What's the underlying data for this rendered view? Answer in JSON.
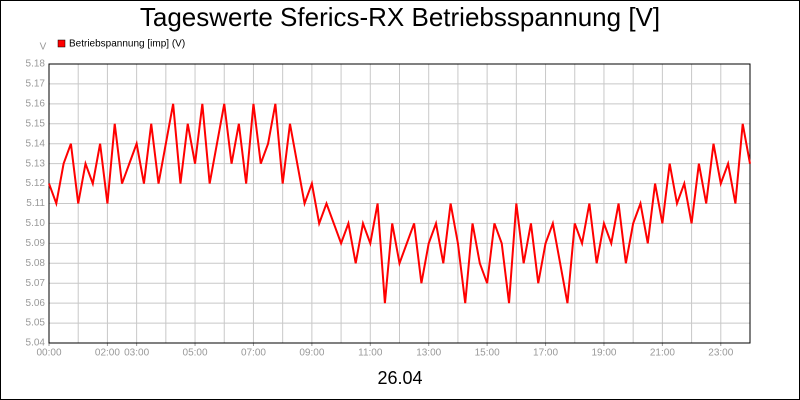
{
  "chart_data": {
    "type": "line",
    "title": "Tageswerte Sferics-RX Betriebsspannung [V]",
    "y_unit": "V",
    "x_label": "26.04",
    "x": [
      0,
      0.25,
      0.5,
      0.75,
      1,
      1.25,
      1.5,
      1.75,
      2,
      2.25,
      2.5,
      2.75,
      3,
      3.25,
      3.5,
      3.75,
      4,
      4.25,
      4.5,
      4.75,
      5,
      5.25,
      5.5,
      5.75,
      6,
      6.25,
      6.5,
      6.75,
      7,
      7.25,
      7.5,
      7.75,
      8,
      8.25,
      8.5,
      8.75,
      9,
      9.25,
      9.5,
      9.75,
      10,
      10.25,
      10.5,
      10.75,
      11,
      11.25,
      11.5,
      11.75,
      12,
      12.25,
      12.5,
      12.75,
      13,
      13.25,
      13.5,
      13.75,
      14,
      14.25,
      14.5,
      14.75,
      15,
      15.25,
      15.5,
      15.75,
      16,
      16.25,
      16.5,
      16.75,
      17,
      17.25,
      17.5,
      17.75,
      18,
      18.25,
      18.5,
      18.75,
      19,
      19.25,
      19.5,
      19.75,
      20,
      20.25,
      20.5,
      20.75,
      21,
      21.25,
      21.5,
      21.75,
      22,
      22.25,
      22.5,
      22.75,
      23,
      23.25,
      23.5,
      23.75,
      24
    ],
    "series": [
      {
        "name": "Betriebspannung [imp] (V)",
        "color": "#ff0000",
        "values": [
          5.12,
          5.11,
          5.13,
          5.14,
          5.11,
          5.13,
          5.12,
          5.14,
          5.11,
          5.15,
          5.12,
          5.13,
          5.14,
          5.12,
          5.15,
          5.12,
          5.14,
          5.16,
          5.12,
          5.15,
          5.13,
          5.16,
          5.12,
          5.14,
          5.16,
          5.13,
          5.15,
          5.12,
          5.16,
          5.13,
          5.14,
          5.16,
          5.12,
          5.15,
          5.13,
          5.11,
          5.12,
          5.1,
          5.11,
          5.1,
          5.09,
          5.1,
          5.08,
          5.1,
          5.09,
          5.11,
          5.06,
          5.1,
          5.08,
          5.09,
          5.1,
          5.07,
          5.09,
          5.1,
          5.08,
          5.11,
          5.09,
          5.06,
          5.1,
          5.08,
          5.07,
          5.1,
          5.09,
          5.06,
          5.11,
          5.08,
          5.1,
          5.07,
          5.09,
          5.1,
          5.08,
          5.06,
          5.1,
          5.09,
          5.11,
          5.08,
          5.1,
          5.09,
          5.11,
          5.08,
          5.1,
          5.11,
          5.09,
          5.12,
          5.1,
          5.13,
          5.11,
          5.12,
          5.1,
          5.13,
          5.11,
          5.14,
          5.12,
          5.13,
          5.11,
          5.15,
          5.13
        ]
      }
    ],
    "xlim": [
      0,
      24
    ],
    "xticks": [
      {
        "value": 0,
        "label": "00:00"
      },
      {
        "value": 2,
        "label": "02:00"
      },
      {
        "value": 3,
        "label": "03:00"
      },
      {
        "value": 5,
        "label": "05:00"
      },
      {
        "value": 7,
        "label": "07:00"
      },
      {
        "value": 9,
        "label": "09:00"
      },
      {
        "value": 11,
        "label": "11:00"
      },
      {
        "value": 13,
        "label": "13:00"
      },
      {
        "value": 15,
        "label": "15:00"
      },
      {
        "value": 17,
        "label": "17:00"
      },
      {
        "value": 19,
        "label": "19:00"
      },
      {
        "value": 21,
        "label": "21:00"
      },
      {
        "value": 23,
        "label": "23:00"
      }
    ],
    "xgrid": [
      1,
      2,
      3,
      4,
      5,
      6,
      7,
      8,
      9,
      10,
      11,
      12,
      13,
      14,
      15,
      16,
      17,
      18,
      19,
      20,
      21,
      22,
      23
    ],
    "ylim": [
      5.04,
      5.18
    ],
    "yticks": [
      5.04,
      5.05,
      5.06,
      5.07,
      5.08,
      5.09,
      {
        "value": 5.1,
        "label": "5.10"
      },
      5.11,
      5.12,
      5.13,
      5.14,
      5.15,
      5.16,
      5.17,
      5.18
    ],
    "grid": true
  }
}
